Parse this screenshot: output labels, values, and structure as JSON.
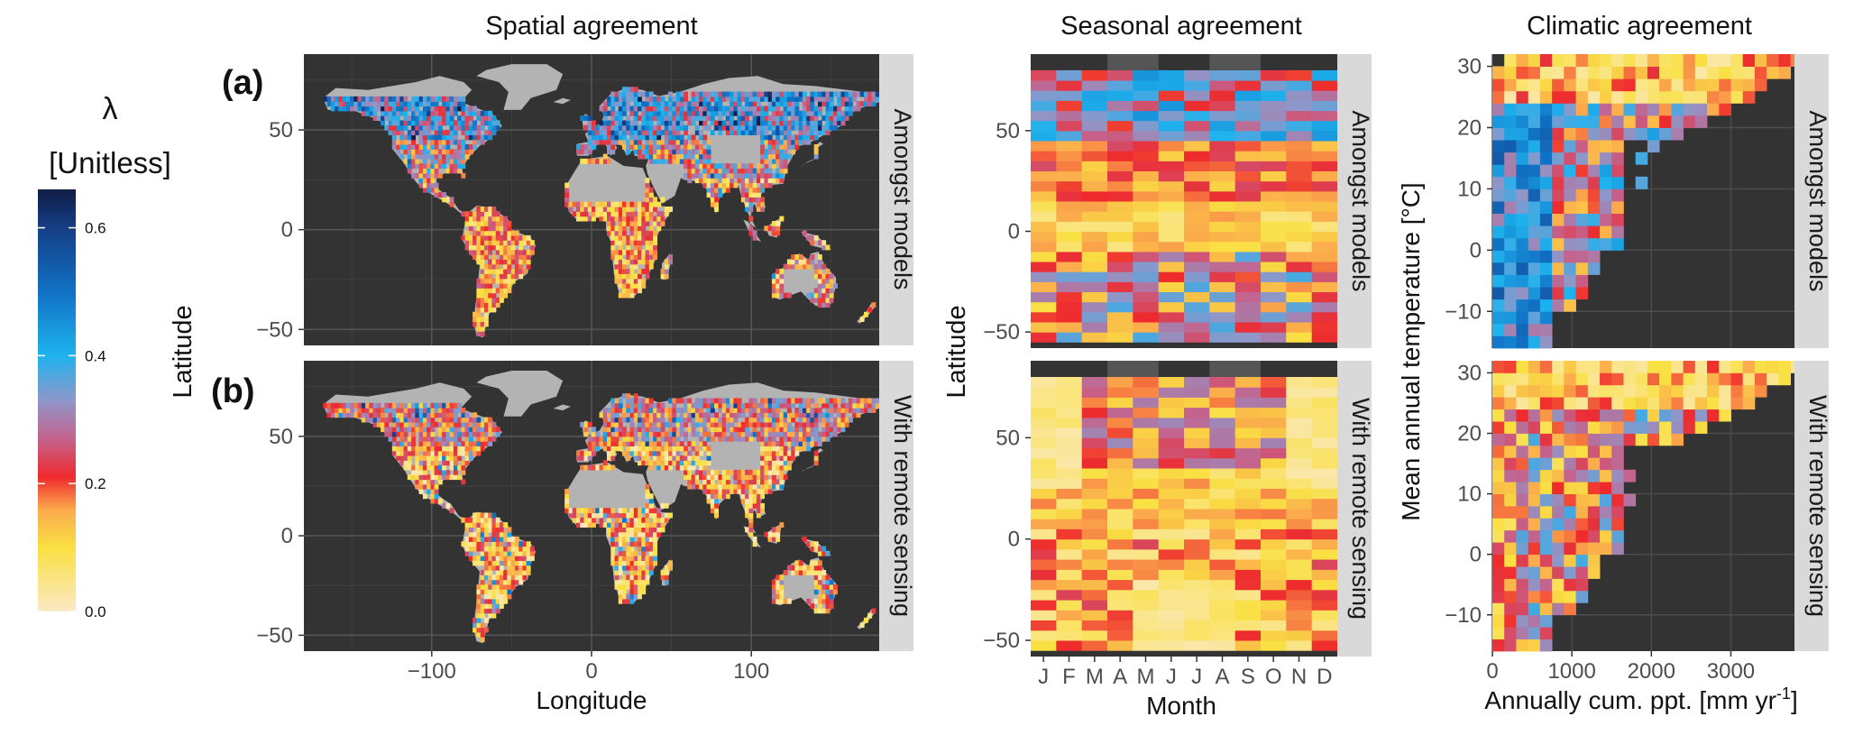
{
  "legend": {
    "symbol": "λ",
    "unit": "[Unitless]",
    "ticks": [
      {
        "label": "0.6",
        "value": 0.6
      },
      {
        "label": "0.4",
        "value": 0.4
      },
      {
        "label": "0.2",
        "value": 0.2
      },
      {
        "label": "0.0",
        "value": 0.0
      }
    ],
    "range": [
      0.0,
      0.66
    ],
    "gradient_stops": [
      {
        "value": 0.0,
        "color": "#fbe9c4"
      },
      {
        "value": 0.1,
        "color": "#f9e043"
      },
      {
        "value": 0.16,
        "color": "#fba94c"
      },
      {
        "value": 0.21,
        "color": "#ee2a2d"
      },
      {
        "value": 0.27,
        "color": "#c4638d"
      },
      {
        "value": 0.33,
        "color": "#8e97c9"
      },
      {
        "value": 0.4,
        "color": "#1fb3ee"
      },
      {
        "value": 0.5,
        "color": "#1171c4"
      },
      {
        "value": 0.6,
        "color": "#153e86"
      },
      {
        "value": 0.66,
        "color": "#111d45"
      }
    ]
  },
  "colors": {
    "panel_bg": "#333333",
    "strip_bg": "#d9d9d9",
    "land_no_data": "#b3b3b3",
    "grid": "#4d4d4d"
  },
  "titles": {
    "spatial": "Spatial agreement",
    "seasonal": "Seasonal agreement",
    "climatic": "Climatic agreement"
  },
  "row_labels": {
    "a": "(a)",
    "b": "(b)"
  },
  "strips": {
    "models": "Amongst models",
    "remote": "With remote sensing"
  },
  "chart_data": [
    {
      "type": "heatmap",
      "title": "Spatial agreement",
      "panels": [
        "Amongst models",
        "With remote sensing"
      ],
      "xlabel": "Longitude",
      "ylabel": "Latitude",
      "xlim": [
        -180,
        180
      ],
      "ylim": [
        -58,
        88
      ],
      "xticks": [
        -100,
        0,
        100
      ],
      "xtick_labels": [
        "−100",
        "0",
        "100"
      ],
      "yticks": [
        -50,
        0,
        50
      ],
      "ytick_labels": [
        "−50",
        "0",
        "50"
      ],
      "grid": true
    },
    {
      "type": "heatmap",
      "title": "Seasonal agreement",
      "panels": [
        "Amongst models",
        "With remote sensing"
      ],
      "xlabel": "Month",
      "ylabel": "Latitude",
      "categories": [
        "J",
        "F",
        "M",
        "A",
        "M",
        "J",
        "J",
        "A",
        "S",
        "O",
        "N",
        "D"
      ],
      "ylim": [
        -58,
        88
      ],
      "yticks": [
        -50,
        0,
        50
      ],
      "ytick_labels": [
        "−50",
        "0",
        "50"
      ],
      "grid": true
    },
    {
      "type": "heatmap",
      "title": "Climatic agreement",
      "panels": [
        "Amongst models",
        "With remote sensing"
      ],
      "xlabel": "Annually cum. ppt. [mm yr",
      "xlabel_sup": "-1",
      "xlabel_end": "]",
      "ylabel": "Mean annual temperature [°C]",
      "xlim": [
        0,
        3800
      ],
      "ylim": [
        -16,
        32
      ],
      "xticks": [
        0,
        1000,
        2000,
        3000
      ],
      "xtick_labels": [
        "0",
        "1000",
        "2000",
        "3000"
      ],
      "yticks": [
        -10,
        0,
        10,
        20,
        30
      ],
      "ytick_labels": [
        "−10",
        "0",
        "10",
        "20",
        "30"
      ],
      "grid": true
    }
  ]
}
